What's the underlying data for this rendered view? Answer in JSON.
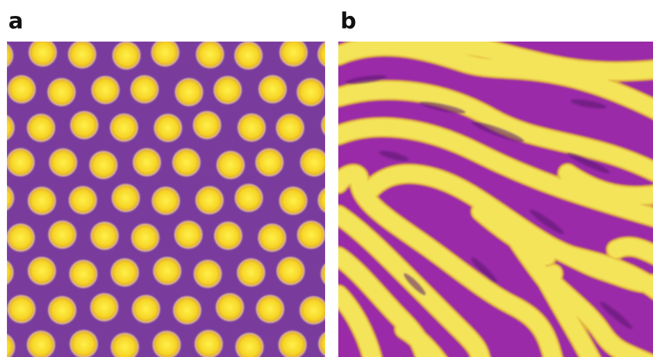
{
  "panels": [
    {
      "label": "a",
      "pattern": "hexagonal-spots",
      "background_color": "#7a3c9c",
      "feature_color": "#f7e030"
    },
    {
      "label": "b",
      "pattern": "labyrinthine-stripes",
      "background_color": "#9a2aa8",
      "feature_color": "#f4e45a"
    }
  ]
}
